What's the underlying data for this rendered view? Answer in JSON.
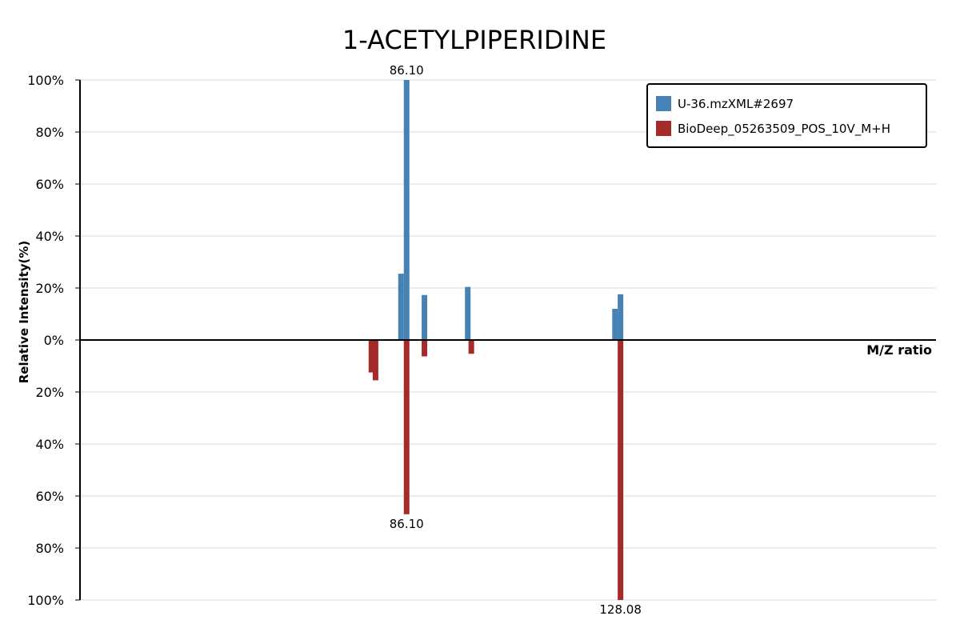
{
  "chart_data": {
    "type": "bar",
    "title": "1-ACETYLPIPERIDINE",
    "xlabel": "M/Z ratio",
    "ylabel": "Relative Intensity(%)",
    "grid": true,
    "legend_position": "top-right",
    "xlim": [
      22,
      190
    ],
    "ylim_top": [
      0,
      100
    ],
    "ylim_bottom": [
      0,
      100
    ],
    "y_ticks_top": [
      "0%",
      "20%",
      "40%",
      "60%",
      "80%",
      "100%"
    ],
    "y_ticks_bottom": [
      "20%",
      "40%",
      "60%",
      "80%",
      "100%"
    ],
    "series": [
      {
        "name": "U-36.mzXML#2697",
        "color": "#4682b4",
        "direction": "up",
        "points": [
          {
            "mz": 85.0,
            "intensity": 25.5
          },
          {
            "mz": 89.6,
            "intensity": 17.3
          },
          {
            "mz": 98.1,
            "intensity": 20.4
          },
          {
            "mz": 86.1,
            "intensity": 100.0,
            "label": "86.10"
          },
          {
            "mz": 127.0,
            "intensity": 12.0
          },
          {
            "mz": 128.08,
            "intensity": 17.6
          }
        ]
      },
      {
        "name": "BioDeep_05263509_POS_10V_M+H",
        "color": "#a52a2a",
        "direction": "down",
        "points": [
          {
            "mz": 79.2,
            "intensity": 12.5
          },
          {
            "mz": 80.0,
            "intensity": 15.5
          },
          {
            "mz": 89.6,
            "intensity": 6.3
          },
          {
            "mz": 98.8,
            "intensity": 5.3
          },
          {
            "mz": 86.1,
            "intensity": 67.0,
            "label": "86.10"
          },
          {
            "mz": 128.08,
            "intensity": 100.0,
            "label": "128.08"
          }
        ]
      }
    ]
  }
}
